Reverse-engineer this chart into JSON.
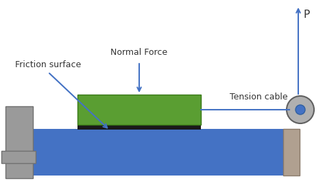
{
  "bg_color": "#ffffff",
  "blue_color": "#4472c4",
  "green_color": "#5a9e32",
  "green_edge": "#3a7a18",
  "black_color": "#1a1a1a",
  "gray_color": "#a0a0a0",
  "dark_gray": "#808080",
  "wall_gray": "#9a9a9a",
  "arrow_color": "#4472c4",
  "pulley_gray": "#b0a090",
  "pulley_outline": "#8a7a6a",
  "labels": {
    "friction_surface": "Friction surface",
    "normal_force": "Normal Force",
    "tension_cable": "Tension cable",
    "P": "P"
  },
  "fig_width": 4.74,
  "fig_height": 2.64,
  "dpi": 100
}
